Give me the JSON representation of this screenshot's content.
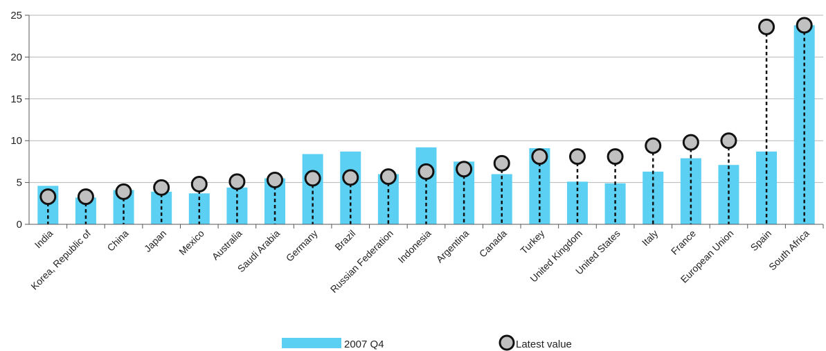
{
  "chart_data": {
    "type": "bar",
    "categories": [
      "India",
      "Korea, Republic of",
      "China",
      "Japan",
      "Mexico",
      "Australia",
      "Saudi Arabia",
      "Germany",
      "Brazil",
      "Russian Federation",
      "Indonesia",
      "Argentina",
      "Canada",
      "Turkey",
      "United Kingdom",
      "United States",
      "Italy",
      "France",
      "European Union",
      "Spain",
      "South Africa"
    ],
    "series": [
      {
        "name": "2007 Q4",
        "kind": "bar",
        "color": "#5bd0f2",
        "values": [
          4.6,
          3.2,
          4.1,
          3.9,
          3.7,
          4.4,
          5.5,
          8.4,
          8.7,
          6.0,
          9.2,
          7.5,
          6.0,
          9.1,
          5.1,
          4.9,
          6.3,
          7.9,
          7.1,
          8.7,
          23.8
        ]
      },
      {
        "name": "Latest value",
        "kind": "marker",
        "color": "#c0c0c0",
        "values": [
          3.3,
          3.3,
          3.9,
          4.4,
          4.8,
          5.1,
          5.3,
          5.5,
          5.6,
          5.7,
          6.3,
          6.6,
          7.3,
          8.1,
          8.1,
          8.1,
          9.4,
          9.8,
          10.0,
          23.6,
          23.8
        ]
      }
    ],
    "ylim": [
      0,
      25
    ],
    "yticks": [
      0,
      5,
      10,
      15,
      20,
      25
    ],
    "grid": true,
    "legend": "bottom"
  },
  "legend": {
    "bar_label": "2007 Q4",
    "marker_label": "Latest value"
  }
}
